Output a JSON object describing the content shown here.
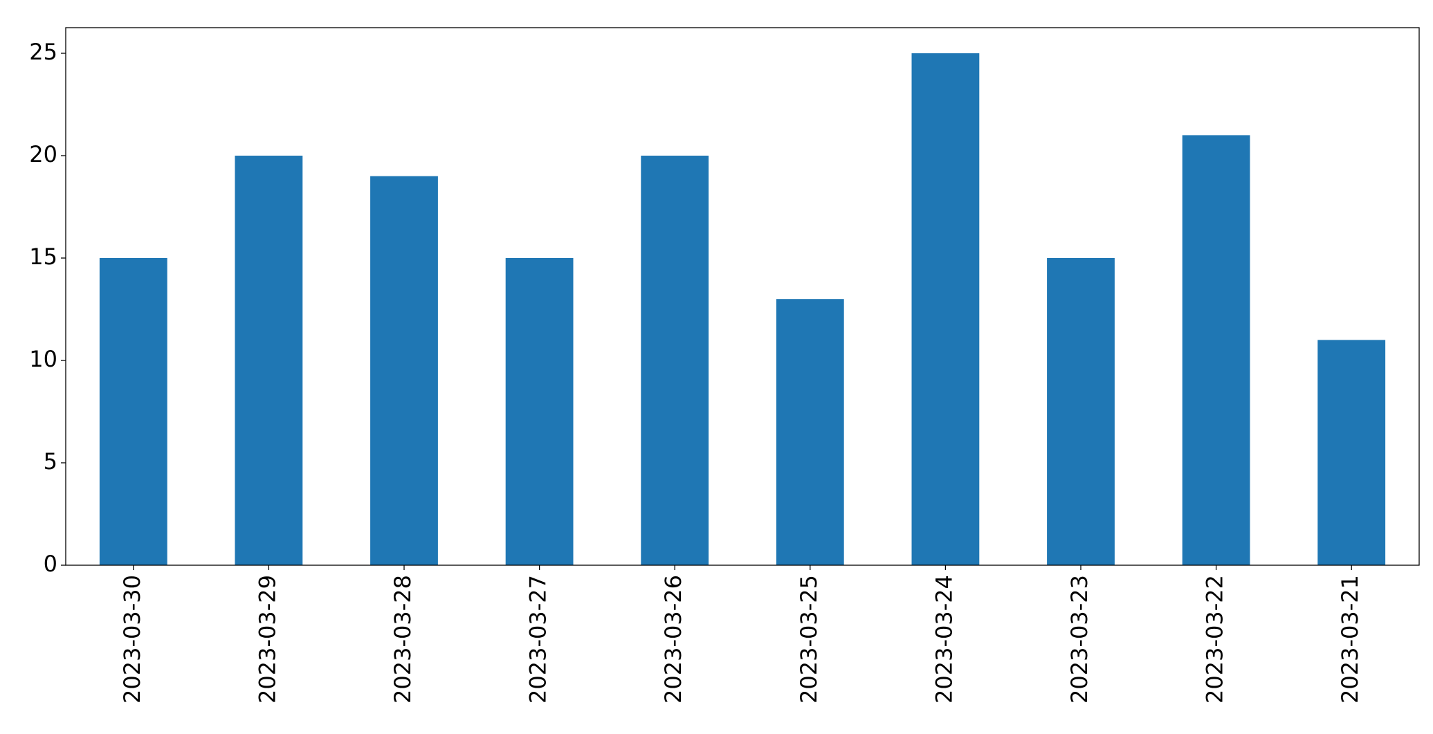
{
  "chart_data": {
    "type": "bar",
    "categories": [
      "2023-03-30",
      "2023-03-29",
      "2023-03-28",
      "2023-03-27",
      "2023-03-26",
      "2023-03-25",
      "2023-03-24",
      "2023-03-23",
      "2023-03-22",
      "2023-03-21"
    ],
    "values": [
      15,
      20,
      19,
      15,
      20,
      13,
      25,
      15,
      21,
      11
    ],
    "color": "#1f77b4",
    "ylim": [
      0,
      26.25
    ],
    "yticks": [
      0,
      5,
      10,
      15,
      20,
      25
    ],
    "grid": false
  }
}
